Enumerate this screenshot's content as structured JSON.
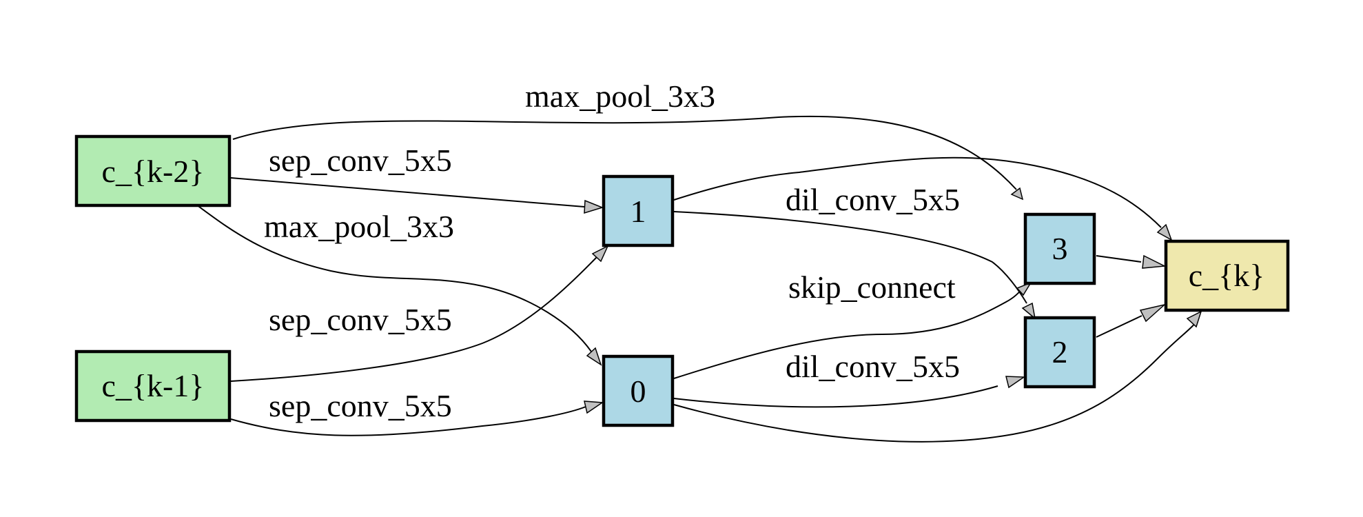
{
  "colors": {
    "input": "#b2ebb2",
    "intermediate": "#add8e6",
    "output": "#efe8ad",
    "edge": "#000000",
    "arrowhead": "#c0c0c0"
  },
  "nodes": {
    "ck2": {
      "label": "c_{k-2}",
      "kind": "input"
    },
    "ck1": {
      "label": "c_{k-1}",
      "kind": "input"
    },
    "n0": {
      "label": "0",
      "kind": "intermediate"
    },
    "n1": {
      "label": "1",
      "kind": "intermediate"
    },
    "n2": {
      "label": "2",
      "kind": "intermediate"
    },
    "n3": {
      "label": "3",
      "kind": "intermediate"
    },
    "ck": {
      "label": "c_{k}",
      "kind": "output"
    }
  },
  "edges": [
    {
      "from": "c_{k-2}",
      "to": "3",
      "op": "max_pool_3x3"
    },
    {
      "from": "c_{k-2}",
      "to": "1",
      "op": "sep_conv_5x5"
    },
    {
      "from": "c_{k-2}",
      "to": "0",
      "op": "max_pool_3x3"
    },
    {
      "from": "c_{k-1}",
      "to": "1",
      "op": "sep_conv_5x5"
    },
    {
      "from": "c_{k-1}",
      "to": "0",
      "op": "sep_conv_5x5"
    },
    {
      "from": "1",
      "to": "2",
      "op": "dil_conv_5x5"
    },
    {
      "from": "0",
      "to": "3",
      "op": "skip_connect"
    },
    {
      "from": "0",
      "to": "2",
      "op": "dil_conv_5x5"
    },
    {
      "from": "1",
      "to": "c_{k}",
      "op": ""
    },
    {
      "from": "3",
      "to": "c_{k}",
      "op": ""
    },
    {
      "from": "2",
      "to": "c_{k}",
      "op": ""
    },
    {
      "from": "0",
      "to": "c_{k}",
      "op": ""
    }
  ]
}
